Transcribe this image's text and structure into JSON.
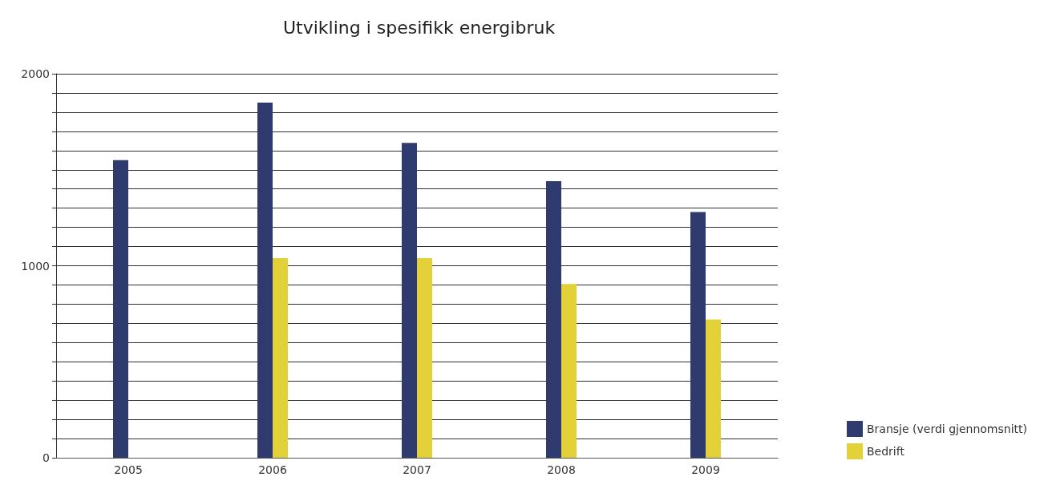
{
  "chart_data": {
    "type": "bar",
    "title": "Utvikling i spesifikk energibruk",
    "categories": [
      "2005",
      "2006",
      "2007",
      "2008",
      "2009"
    ],
    "series": [
      {
        "name": "Bransje (verdi gjennomsnitt)",
        "color": "#2f3b6e",
        "values": [
          1550,
          1850,
          1640,
          1440,
          1280
        ]
      },
      {
        "name": "Bedrift",
        "color": "#e3d13a",
        "values": [
          null,
          1040,
          1040,
          905,
          720
        ]
      }
    ],
    "ylim": [
      0,
      2000
    ],
    "yticks": [
      0,
      {
        "value": 100,
        "label": null
      },
      {
        "value": 200,
        "label": null
      },
      {
        "value": 300,
        "label": null
      },
      {
        "value": 400,
        "label": null
      },
      {
        "value": 500,
        "label": null
      },
      {
        "value": 600,
        "label": null
      },
      {
        "value": 700,
        "label": null
      },
      {
        "value": 800,
        "label": null
      },
      {
        "value": 900,
        "label": null
      },
      1000,
      {
        "value": 1100,
        "label": null
      },
      {
        "value": 1200,
        "label": null
      },
      {
        "value": 1300,
        "label": null
      },
      {
        "value": 1400,
        "label": null
      },
      {
        "value": 1500,
        "label": null
      },
      {
        "value": 1600,
        "label": null
      },
      {
        "value": 1700,
        "label": null
      },
      {
        "value": 1800,
        "label": null
      },
      {
        "value": 1900,
        "label": null
      },
      2000
    ],
    "grid": "y",
    "legend": "bottom right"
  }
}
